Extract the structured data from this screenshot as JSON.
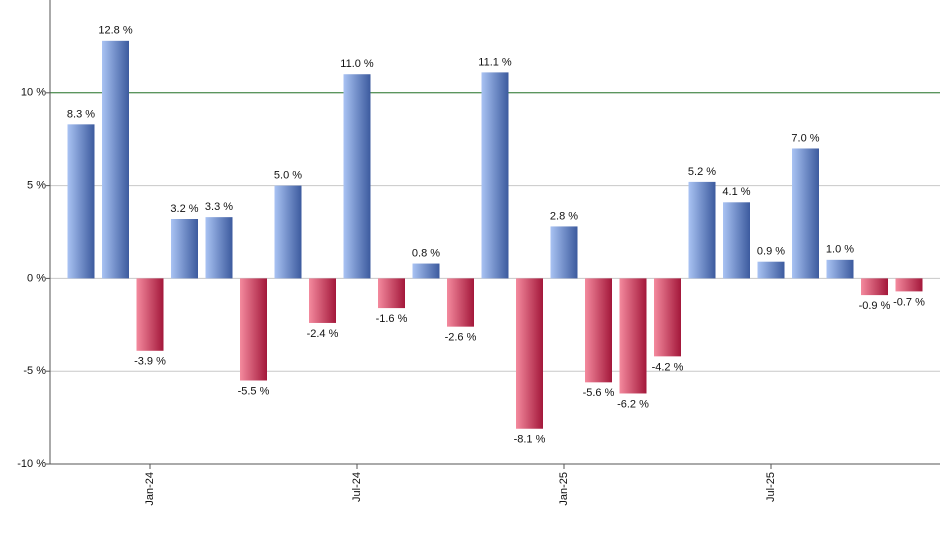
{
  "chart_data": {
    "type": "bar",
    "categories": [
      null,
      null,
      "Jan-24",
      null,
      null,
      null,
      null,
      null,
      "Jul-24",
      null,
      null,
      null,
      null,
      null,
      "Jan-25",
      null,
      null,
      null,
      null,
      null,
      "Jul-25",
      null,
      null,
      null,
      null
    ],
    "values": [
      8.3,
      12.8,
      -3.9,
      3.2,
      3.3,
      -5.5,
      5.0,
      -2.4,
      11.0,
      -1.6,
      0.8,
      -2.6,
      11.1,
      -8.1,
      2.8,
      -5.6,
      -6.2,
      -4.2,
      5.2,
      4.1,
      0.9,
      7.0,
      1.0,
      -0.9,
      -0.7
    ],
    "value_labels": [
      "8.3 %",
      "12.8 %",
      "-3.9 %",
      "3.2 %",
      "3.3 %",
      "-5.5 %",
      "5.0 %",
      "-2.4 %",
      "11.0 %",
      "-1.6 %",
      "0.8 %",
      "-2.6 %",
      "11.1 %",
      "-8.1 %",
      "2.8 %",
      "-5.6 %",
      "-6.2 %",
      "-4.2 %",
      "5.2 %",
      "4.1 %",
      "0.9 %",
      "7.0 %",
      "1.0 %",
      "-0.9 %",
      "-0.7 %"
    ],
    "positive_gradient": [
      "#a9c3f3",
      "#3c5a9e"
    ],
    "negative_gradient": [
      "#f48a9e",
      "#a3173a"
    ],
    "ylim": [
      -10,
      15
    ],
    "yticks": [
      {
        "value": -10,
        "label": "-10 %"
      },
      {
        "value": -5,
        "label": "-5 %"
      },
      {
        "value": 0,
        "label": "0 %"
      },
      {
        "value": 5,
        "label": "5 %"
      },
      {
        "value": 10,
        "label": "10 %"
      }
    ],
    "grid": true,
    "reference_line": {
      "value": 10,
      "color": "#2e7d32"
    }
  }
}
